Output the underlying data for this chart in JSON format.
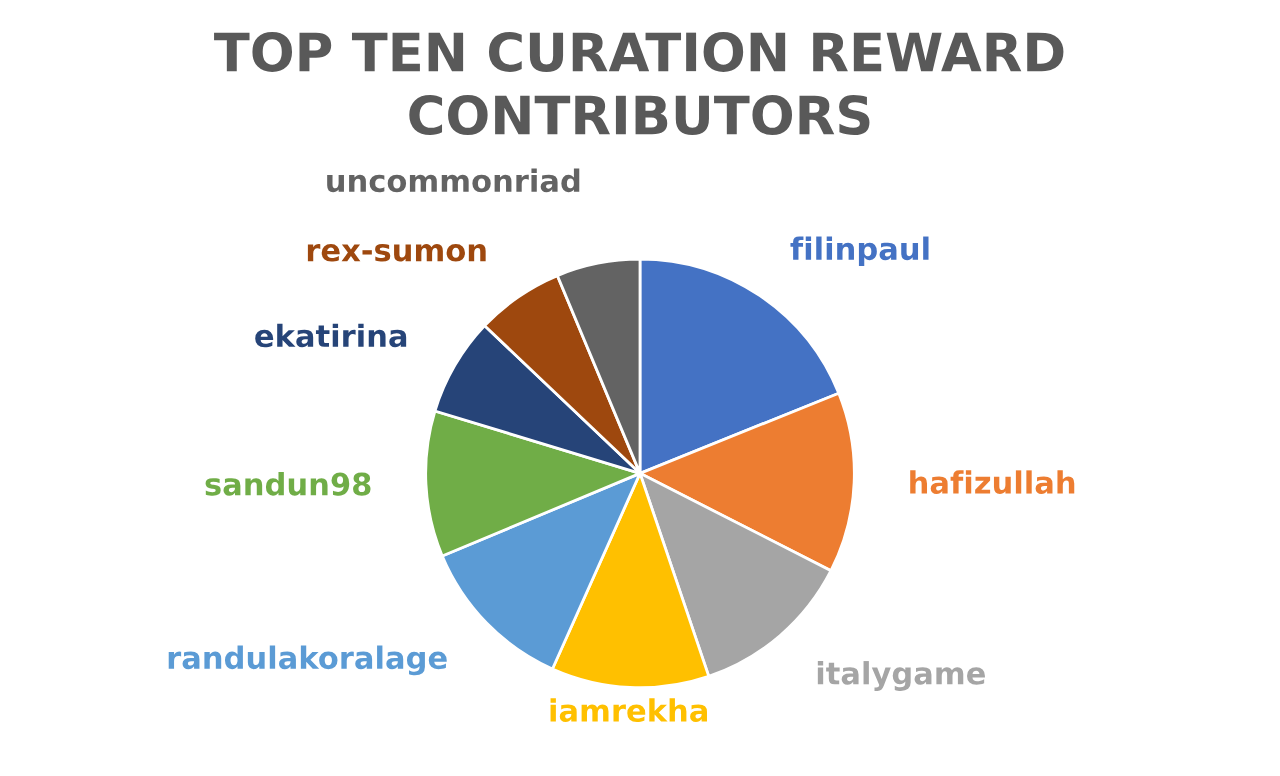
{
  "chart_data": {
    "type": "pie",
    "title": "TOP TEN CURATION REWARD\nCONTRIBUTORS",
    "categories": [
      "filinpaul",
      "hafizullah",
      "italygame",
      "iamrekha",
      "randulakoralage",
      "sandun98",
      "ekatirina",
      "rex-sumon",
      "uncommonriad"
    ],
    "values": [
      18.9,
      13.6,
      12.3,
      11.9,
      12.0,
      11.0,
      7.4,
      6.6,
      6.3
    ],
    "colors": [
      "#4472c4",
      "#ed7d31",
      "#a5a5a5",
      "#ffc000",
      "#5b9bd5",
      "#70ad47",
      "#264478",
      "#9e480e",
      "#636363"
    ],
    "legend": false
  }
}
